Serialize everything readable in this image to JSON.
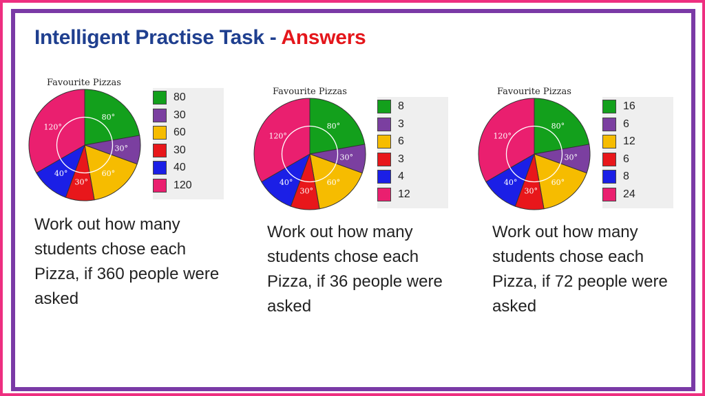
{
  "title": {
    "main": "Intelligent Practise Task - ",
    "highlight": "Answers"
  },
  "chart_data": [
    {
      "type": "pie",
      "title": "Favourite Pizzas",
      "angles": [
        80,
        30,
        60,
        30,
        40,
        120
      ],
      "angle_labels": [
        "80°",
        "30°",
        "60°",
        "30°",
        "40°",
        "120°"
      ],
      "colors": [
        "#13a01c",
        "#7b3fa0",
        "#f6bc00",
        "#e8171b",
        "#1b1fe6",
        "#ea1f6f"
      ],
      "legend_values": [
        "80",
        "30",
        "60",
        "30",
        "40",
        "120"
      ],
      "question": [
        "Work out how many",
        "students chose each",
        "Pizza, if 360 people were",
        "asked"
      ]
    },
    {
      "type": "pie",
      "title": "Favourite Pizzas",
      "angles": [
        80,
        30,
        60,
        30,
        40,
        120
      ],
      "angle_labels": [
        "80°",
        "30°",
        "60°",
        "30°",
        "40°",
        "120°"
      ],
      "colors": [
        "#13a01c",
        "#7b3fa0",
        "#f6bc00",
        "#e8171b",
        "#1b1fe6",
        "#ea1f6f"
      ],
      "legend_values": [
        "8",
        "3",
        "6",
        "3",
        "4",
        "12"
      ],
      "question": [
        "Work out how many",
        "students chose each",
        "Pizza, if 36 people were",
        "asked"
      ]
    },
    {
      "type": "pie",
      "title": "Favourite Pizzas",
      "angles": [
        80,
        30,
        60,
        30,
        40,
        120
      ],
      "angle_labels": [
        "80°",
        "30°",
        "60°",
        "30°",
        "40°",
        "120°"
      ],
      "colors": [
        "#13a01c",
        "#7b3fa0",
        "#f6bc00",
        "#e8171b",
        "#1b1fe6",
        "#ea1f6f"
      ],
      "legend_values": [
        "16",
        "6",
        "12",
        "6",
        "8",
        "24"
      ],
      "question": [
        "Work out how many",
        "students chose each",
        "Pizza, if 72 people were",
        "asked"
      ]
    }
  ]
}
